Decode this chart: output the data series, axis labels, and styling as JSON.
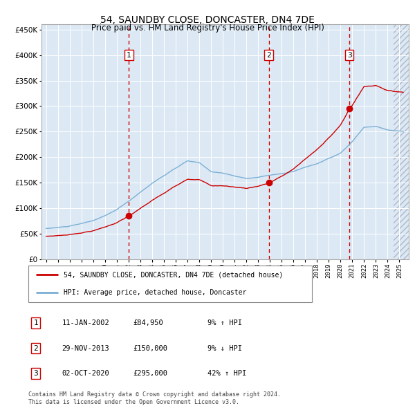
{
  "title": "54, SAUNDBY CLOSE, DONCASTER, DN4 7DE",
  "subtitle": "Price paid vs. HM Land Registry's House Price Index (HPI)",
  "background_color": "#dce9f5",
  "hpi_line_color": "#7bafd4",
  "price_line_color": "#cc0000",
  "marker_color": "#cc0000",
  "sale_prices": [
    84950,
    150000,
    295000
  ],
  "sale_labels": [
    "1",
    "2",
    "3"
  ],
  "sale_info": [
    [
      "1",
      "11-JAN-2002",
      "£84,950",
      "9% ↑ HPI"
    ],
    [
      "2",
      "29-NOV-2013",
      "£150,000",
      "9% ↓ HPI"
    ],
    [
      "3",
      "02-OCT-2020",
      "£295,000",
      "42% ↑ HPI"
    ]
  ],
  "ylim": [
    0,
    460000
  ],
  "yticks": [
    0,
    50000,
    100000,
    150000,
    200000,
    250000,
    300000,
    350000,
    400000,
    450000
  ],
  "ytick_labels": [
    "£0",
    "£50K",
    "£100K",
    "£150K",
    "£200K",
    "£250K",
    "£300K",
    "£350K",
    "£400K",
    "£450K"
  ],
  "xlim_start": 1994.6,
  "xlim_end": 2025.8,
  "legend_entries": [
    "54, SAUNDBY CLOSE, DONCASTER, DN4 7DE (detached house)",
    "HPI: Average price, detached house, Doncaster"
  ],
  "footer": "Contains HM Land Registry data © Crown copyright and database right 2024.\nThis data is licensed under the Open Government Licence v3.0.",
  "grid_color": "#ffffff",
  "vline_color": "#cc0000",
  "label_box_color": "#ffffff",
  "label_box_edge": "#cc0000"
}
